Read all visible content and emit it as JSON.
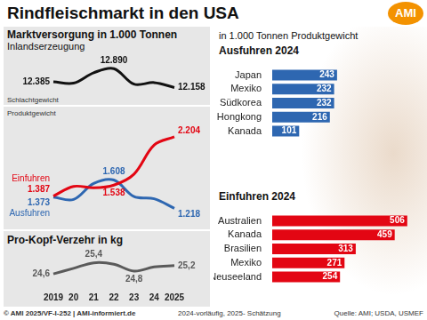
{
  "title": "Rindfleischmarkt in den USA",
  "logo": "AMI",
  "chart_data": [
    {
      "type": "line",
      "title": "Marktversorgung in 1.000 Tonnen",
      "subtitle": "Inlandserzeugung",
      "annotations": [
        "Schlachtgewicht"
      ],
      "categories": [
        "2019",
        "20",
        "21",
        "22",
        "23",
        "24",
        "2025"
      ],
      "values": [
        12385,
        12330,
        12730,
        12890,
        12290,
        12350,
        12158
      ],
      "value_labels": [
        "12.385",
        null,
        null,
        "12.890",
        null,
        null,
        "12.158"
      ],
      "color": "#111111",
      "ylim": [
        11900,
        13000
      ],
      "grid": false,
      "tick_labels": false
    },
    {
      "type": "line",
      "annotations": [
        "Produktgewicht"
      ],
      "categories": [
        "2019",
        "20",
        "21",
        "22",
        "23",
        "24",
        "2025"
      ],
      "series": [
        {
          "name": "Einfuhren",
          "color": "#e30613",
          "values": [
            1387,
            1520,
            1500,
            1538,
            1690,
            2090,
            2204
          ],
          "value_labels": [
            "1.387",
            null,
            null,
            "1.538",
            null,
            null,
            "2.204"
          ]
        },
        {
          "name": "Ausfuhren",
          "color": "#2e67b1",
          "values": [
            1373,
            1340,
            1560,
            1608,
            1380,
            1350,
            1218
          ],
          "value_labels": [
            "1.373",
            null,
            null,
            "1.608",
            null,
            null,
            "1.218"
          ]
        }
      ],
      "ylim": [
        1100,
        2300
      ],
      "grid": false,
      "tick_labels": false
    },
    {
      "type": "line",
      "title": "Pro-Kopf-Verzehr in kg",
      "categories": [
        "2019",
        "20",
        "21",
        "22",
        "23",
        "24",
        "2025"
      ],
      "values": [
        24.6,
        25.0,
        25.4,
        25.3,
        24.8,
        25.1,
        25.2
      ],
      "value_labels": [
        "24,6",
        null,
        "25,4",
        null,
        "24,8",
        null,
        "25,2"
      ],
      "color": "#5a5a5a",
      "ylim": [
        23.9,
        25.7
      ],
      "grid": false,
      "tick_labels": "x"
    },
    {
      "type": "bar",
      "orientation": "horizontal",
      "subtitle": "in 1.000 Tonnen Produktgewicht",
      "title": "Ausfuhren 2024",
      "categories": [
        "Japan",
        "Mexiko",
        "Südkorea",
        "Hongkong",
        "Kanada"
      ],
      "values": [
        243,
        232,
        232,
        216,
        101
      ],
      "color": "#2e67b1",
      "xlim": [
        0,
        540
      ],
      "data_labels": true,
      "grid": false,
      "tick_labels": "y"
    },
    {
      "type": "bar",
      "orientation": "horizontal",
      "title": "Einfuhren 2024",
      "categories": [
        "Australien",
        "Kanada",
        "Brasilien",
        "Mexiko",
        "Neuseeland"
      ],
      "values": [
        506,
        459,
        313,
        271,
        254
      ],
      "color": "#e30613",
      "xlim": [
        0,
        540
      ],
      "data_labels": true,
      "grid": false,
      "tick_labels": "y"
    }
  ],
  "footer": {
    "left": "© AMI 2025/VF-I-252 | AMI-informiert.de",
    "center": "2024-vorläufig, 2025- Schätzung",
    "right": "Quelle: AMI; USDA, USMEF"
  }
}
